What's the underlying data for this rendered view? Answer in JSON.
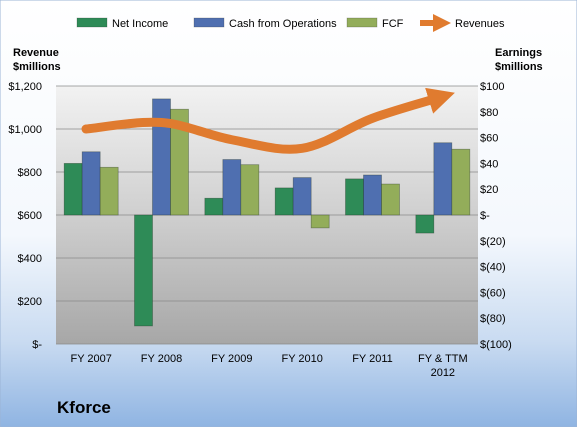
{
  "chart_data": {
    "type": "bar",
    "title": "",
    "footer_label": "Kforce",
    "categories": [
      "FY 2007",
      "FY 2008",
      "FY 2009",
      "FY 2010",
      "FY 2011",
      "FY & TTM 2012"
    ],
    "left_axis": {
      "label_line1": "Revenue",
      "label_line2": "$millions",
      "range": [
        0,
        1200
      ],
      "ticks": [
        {
          "value": 0,
          "label": "$-"
        },
        {
          "value": 200,
          "label": "$200"
        },
        {
          "value": 400,
          "label": "$400"
        },
        {
          "value": 600,
          "label": "$600"
        },
        {
          "value": 800,
          "label": "$800"
        },
        {
          "value": 1000,
          "label": "$1,000"
        },
        {
          "value": 1200,
          "label": "$1,200"
        }
      ]
    },
    "right_axis": {
      "label_line1": "Earnings",
      "label_line2": "$millions",
      "range": [
        -100,
        100
      ],
      "ticks": [
        {
          "value": -100,
          "label": "$(100)"
        },
        {
          "value": -80,
          "label": "$(80)"
        },
        {
          "value": -60,
          "label": "$(60)"
        },
        {
          "value": -40,
          "label": "$(40)"
        },
        {
          "value": -20,
          "label": "$(20)"
        },
        {
          "value": 0,
          "label": "$-"
        },
        {
          "value": 20,
          "label": "$20"
        },
        {
          "value": 40,
          "label": "$40"
        },
        {
          "value": 60,
          "label": "$60"
        },
        {
          "value": 80,
          "label": "$80"
        },
        {
          "value": 100,
          "label": "$100"
        }
      ]
    },
    "series": [
      {
        "name": "Net Income",
        "axis": "right",
        "kind": "bar",
        "color": "#2e8b57",
        "values": [
          40,
          -86,
          13,
          21,
          28,
          -14
        ]
      },
      {
        "name": "Cash from Operations",
        "axis": "right",
        "kind": "bar",
        "color": "#4f6fb0",
        "values": [
          49,
          90,
          43,
          29,
          31,
          56
        ]
      },
      {
        "name": "FCF",
        "axis": "right",
        "kind": "bar",
        "color": "#93ad5a",
        "values": [
          37,
          82,
          39,
          -10,
          24,
          51
        ]
      },
      {
        "name": "Revenues",
        "axis": "left",
        "kind": "line",
        "color": "#e07b2f",
        "values": [
          1000,
          1030,
          950,
          910,
          1050,
          1150
        ]
      }
    ],
    "grid": true,
    "legend_position": "top"
  }
}
